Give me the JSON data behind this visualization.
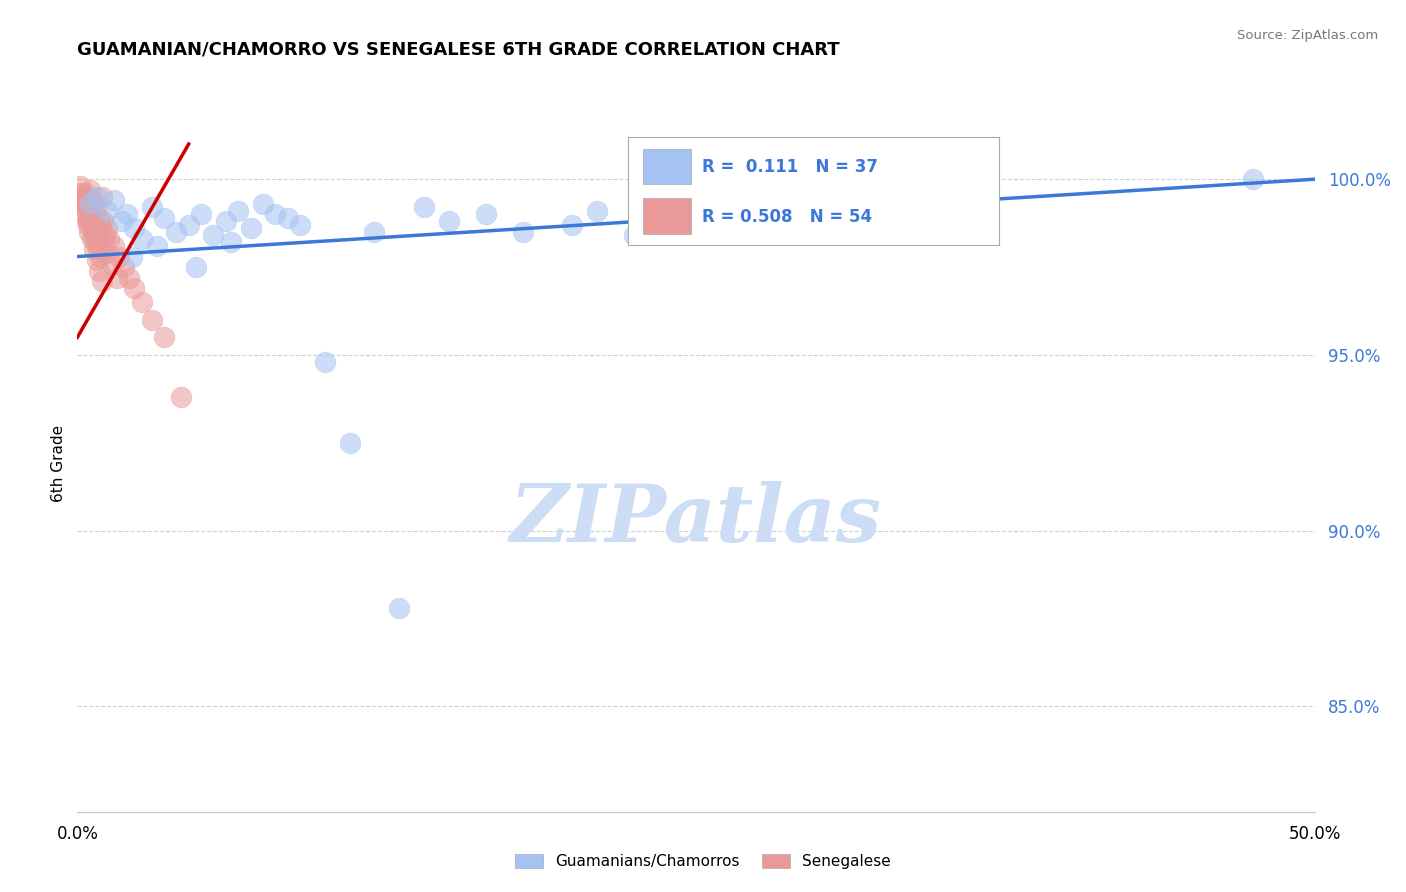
{
  "title": "GUAMANIAN/CHAMORRO VS SENEGALESE 6TH GRADE CORRELATION CHART",
  "source": "Source: ZipAtlas.com",
  "ylabel": "6th Grade",
  "xlim": [
    0.0,
    50.0
  ],
  "ylim": [
    82.0,
    101.8
  ],
  "yticks": [
    85.0,
    90.0,
    95.0,
    100.0
  ],
  "ytick_labels": [
    "85.0%",
    "90.0%",
    "95.0%",
    "100.0%"
  ],
  "legend_labels": [
    "Guamanians/Chamorros",
    "Senegalese"
  ],
  "R_blue": 0.111,
  "N_blue": 37,
  "R_pink": 0.508,
  "N_pink": 54,
  "blue_color": "#a4c2f4",
  "pink_color": "#ea9999",
  "trendline_blue": "#3c78d8",
  "trendline_pink": "#cc0000",
  "blue_trendline": [
    [
      0.0,
      97.8
    ],
    [
      50.0,
      100.0
    ]
  ],
  "pink_trendline": [
    [
      0.0,
      95.5
    ],
    [
      4.5,
      101.0
    ]
  ],
  "blue_scatter_x": [
    0.5,
    0.8,
    1.2,
    1.5,
    1.8,
    2.0,
    2.3,
    2.6,
    3.0,
    3.5,
    4.0,
    4.5,
    5.0,
    5.5,
    6.0,
    6.5,
    7.0,
    7.5,
    8.0,
    9.0,
    10.0,
    11.0,
    12.0,
    14.0,
    15.0,
    16.5,
    18.0,
    20.0,
    21.0,
    22.5,
    47.5,
    2.2,
    3.2,
    4.8,
    6.2,
    8.5,
    13.0
  ],
  "blue_scatter_y": [
    99.3,
    99.5,
    99.1,
    99.4,
    98.8,
    99.0,
    98.6,
    98.3,
    99.2,
    98.9,
    98.5,
    98.7,
    99.0,
    98.4,
    98.8,
    99.1,
    98.6,
    99.3,
    99.0,
    98.7,
    94.8,
    92.5,
    98.5,
    99.2,
    98.8,
    99.0,
    98.5,
    98.7,
    99.1,
    98.4,
    100.0,
    97.8,
    98.1,
    97.5,
    98.2,
    98.9,
    87.8
  ],
  "pink_scatter_x": [
    0.1,
    0.2,
    0.3,
    0.4,
    0.5,
    0.6,
    0.7,
    0.8,
    0.9,
    1.0,
    0.15,
    0.25,
    0.35,
    0.45,
    0.55,
    0.65,
    0.75,
    0.85,
    0.95,
    1.05,
    0.12,
    0.22,
    0.32,
    0.42,
    0.52,
    0.62,
    0.72,
    0.82,
    0.92,
    1.1,
    1.2,
    1.3,
    1.5,
    1.7,
    1.9,
    2.1,
    2.3,
    2.6,
    3.0,
    3.5,
    0.18,
    0.28,
    0.38,
    0.48,
    0.58,
    0.68,
    0.78,
    0.88,
    0.98,
    1.08,
    1.15,
    1.4,
    1.6,
    4.2
  ],
  "pink_scatter_y": [
    99.8,
    99.5,
    99.6,
    99.3,
    99.7,
    99.4,
    99.0,
    99.2,
    98.8,
    99.5,
    99.6,
    99.4,
    99.2,
    98.9,
    99.1,
    98.7,
    98.5,
    98.3,
    98.6,
    98.8,
    99.5,
    99.3,
    99.0,
    98.7,
    98.9,
    98.5,
    98.2,
    98.0,
    97.8,
    98.4,
    98.6,
    98.3,
    98.1,
    97.8,
    97.5,
    97.2,
    96.9,
    96.5,
    96.0,
    95.5,
    99.4,
    99.2,
    98.8,
    98.5,
    98.3,
    98.0,
    97.7,
    97.4,
    97.1,
    98.2,
    97.9,
    97.6,
    97.2,
    93.8
  ],
  "watermark_text": "ZIPatlas",
  "watermark_color": "#ccddf5"
}
